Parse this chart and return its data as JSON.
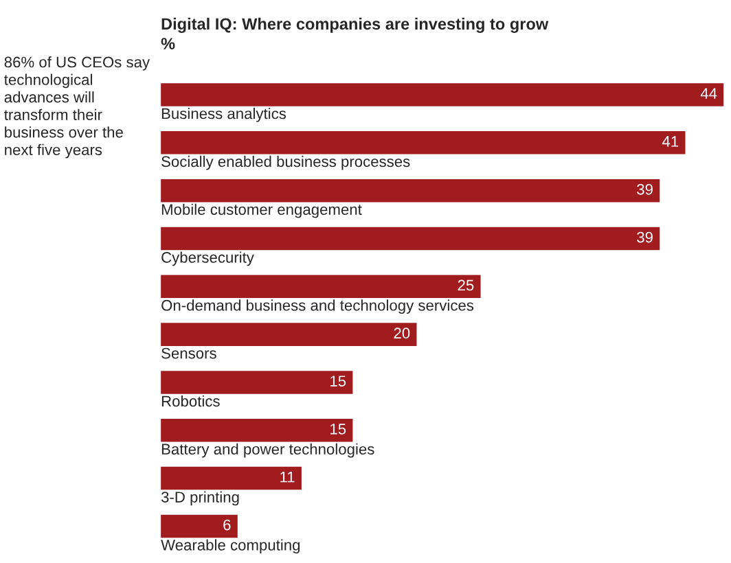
{
  "chart_data": {
    "type": "bar",
    "orientation": "horizontal",
    "title": "Digital IQ: Where companies are investing to grow",
    "subtitle": "%",
    "categories": [
      "Business analytics",
      "Socially enabled business processes",
      "Mobile customer engagement",
      "Cybersecurity",
      "On-demand business and technology services",
      "Sensors",
      "Robotics",
      "Battery and power technologies",
      "3-D printing",
      "Wearable computing"
    ],
    "values": [
      44,
      41,
      39,
      39,
      25,
      20,
      15,
      15,
      11,
      6
    ],
    "color": "#a01c1f",
    "data_labels": true,
    "annotations": [
      "86% of US CEOs say technological advances will transform their business over the next five years"
    ]
  }
}
